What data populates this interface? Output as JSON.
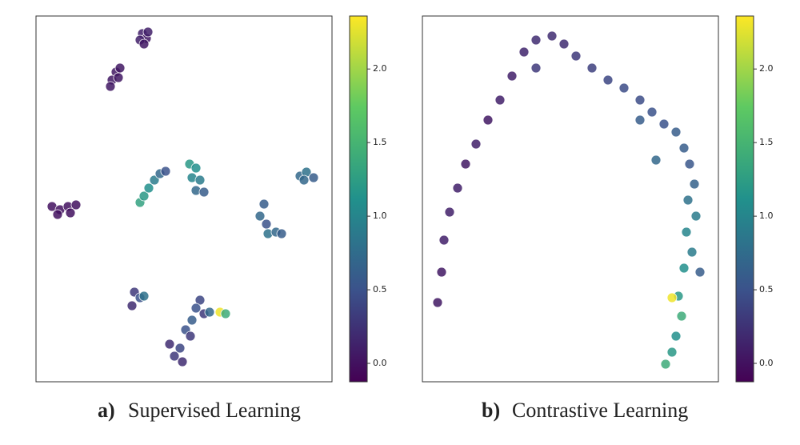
{
  "chart_data": [
    {
      "type": "scatter",
      "label": "a)",
      "title": "Supervised Learning",
      "colormap": "viridis",
      "xlim": [
        0,
        370
      ],
      "ylim": [
        0,
        457
      ],
      "clim": [
        -0.125,
        2.36
      ],
      "cticks": [
        {
          "value": 0,
          "label": "0.0"
        },
        {
          "value": 0.5,
          "label": "0.5"
        },
        {
          "value": 1,
          "label": "1.0"
        },
        {
          "value": 1.5,
          "label": "1.5"
        },
        {
          "value": 2,
          "label": "2.0"
        }
      ],
      "x": [
        133,
        138,
        130,
        140,
        135,
        100,
        105,
        95,
        103,
        93,
        20,
        30,
        40,
        50,
        27,
        43,
        130,
        135,
        141,
        148,
        155,
        162,
        192,
        200,
        195,
        205,
        200,
        210,
        285,
        280,
        288,
        290,
        300,
        307,
        330,
        338,
        347,
        335,
        123,
        130,
        120,
        135,
        205,
        200,
        210,
        195,
        187,
        193,
        167,
        180,
        173,
        183,
        217,
        230,
        237
      ],
      "y": [
        435,
        429,
        427,
        437,
        422,
        387,
        392,
        377,
        380,
        369,
        219,
        215,
        219,
        221,
        209,
        211,
        224,
        232,
        242,
        252,
        260,
        263,
        272,
        267,
        255,
        252,
        239,
        237,
        222,
        207,
        197,
        185,
        187,
        185,
        257,
        262,
        255,
        252,
        112,
        105,
        95,
        107,
        102,
        92,
        85,
        77,
        65,
        57,
        47,
        42,
        32,
        25,
        87,
        87,
        85
      ],
      "c": [
        0.1,
        0.05,
        0.1,
        0.1,
        0.05,
        0.05,
        0.05,
        0.05,
        0.05,
        0.05,
        0,
        0,
        0,
        0,
        0,
        0,
        1.3,
        1.2,
        1.1,
        0.9,
        0.7,
        0.5,
        1.2,
        1.1,
        1,
        0.9,
        0.7,
        0.6,
        0.6,
        0.7,
        0.5,
        0.8,
        0.7,
        0.6,
        0.7,
        0.8,
        0.6,
        0.7,
        0.3,
        0.5,
        0.2,
        0.8,
        0.4,
        0.5,
        0.3,
        0.6,
        0.5,
        0.3,
        0.2,
        0.4,
        0.3,
        0.2,
        0.7,
        2.3,
        1.4
      ]
    },
    {
      "type": "scatter",
      "label": "b)",
      "title": "Contrastive Learning",
      "colormap": "viridis",
      "xlim": [
        0,
        370
      ],
      "ylim": [
        0,
        457
      ],
      "clim": [
        -0.125,
        2.36
      ],
      "cticks": [
        {
          "value": 0,
          "label": "0.0"
        },
        {
          "value": 0.5,
          "label": "0.5"
        },
        {
          "value": 1,
          "label": "1.0"
        },
        {
          "value": 1.5,
          "label": "1.5"
        },
        {
          "value": 2,
          "label": "2.0"
        }
      ],
      "x": [
        19,
        24,
        27,
        34,
        44,
        54,
        67,
        82,
        97,
        112,
        127,
        142,
        162,
        177,
        142,
        192,
        212,
        232,
        252,
        272,
        287,
        302,
        317,
        327,
        334,
        340,
        332,
        342,
        330,
        337,
        347,
        327,
        320,
        312,
        324,
        317,
        312,
        304,
        272,
        292
      ],
      "y": [
        99,
        137,
        177,
        212,
        242,
        272,
        297,
        327,
        352,
        382,
        412,
        427,
        432,
        422,
        392,
        407,
        392,
        377,
        367,
        352,
        337,
        322,
        312,
        292,
        272,
        247,
        227,
        207,
        187,
        162,
        137,
        142,
        107,
        105,
        82,
        57,
        37,
        22,
        327,
        277
      ],
      "c": [
        0.05,
        0.05,
        0.1,
        0.1,
        0.1,
        0.05,
        0.1,
        0.05,
        0.1,
        0.1,
        0.15,
        0.2,
        0.2,
        0.2,
        0.3,
        0.3,
        0.35,
        0.4,
        0.45,
        0.45,
        0.5,
        0.5,
        0.6,
        0.6,
        0.55,
        0.65,
        0.8,
        0.9,
        1,
        0.9,
        0.6,
        1.1,
        1.2,
        2.3,
        1.4,
        1.1,
        1.2,
        1.4,
        0.6,
        0.7
      ]
    }
  ]
}
